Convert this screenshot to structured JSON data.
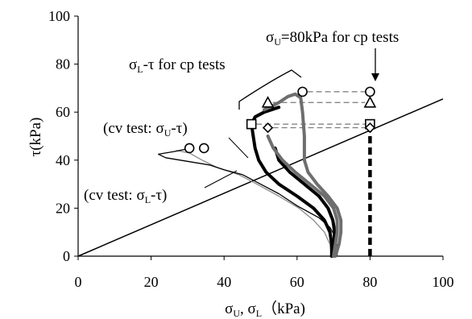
{
  "chart_data": {
    "type": "line",
    "xlabel": {
      "sym1": "σ",
      "sub1": "U",
      "sep": ", ",
      "sym2": "σ",
      "sub2": "L",
      "unit": "（kPa)"
    },
    "ylabel": {
      "sym": "τ",
      "unit": "(kPa)"
    },
    "xlim": [
      0,
      100
    ],
    "ylim": [
      0,
      100
    ],
    "xticks": [
      "0",
      "20",
      "40",
      "60",
      "80",
      "100"
    ],
    "yticks": [
      "0",
      "20",
      "40",
      "60",
      "80",
      "100"
    ],
    "grid": false,
    "legend": "none",
    "colors": {
      "dark": "#000000",
      "gray": "#6e6e6e",
      "light": "#8a8a8a"
    },
    "failure_line": {
      "x": [
        0,
        100
      ],
      "y": [
        0,
        65.5
      ]
    },
    "series": [
      {
        "style": "thin-light",
        "x": [
          69.5,
          69.0,
          67.5,
          64.5,
          60.5,
          55.0,
          49.0,
          44.0,
          38.0,
          34.0,
          30.5,
          27.0
        ],
        "y": [
          0,
          5,
          10,
          15,
          20,
          25,
          30,
          34,
          37,
          40,
          43,
          44
        ]
      },
      {
        "style": "thin-dark",
        "x": [
          71.0,
          71.0,
          70.5,
          69.0,
          66.0,
          60.0,
          55.0,
          50.0,
          45.0,
          40.0,
          36.0,
          32.0,
          28.0,
          24.0,
          22.0,
          26.0,
          31.0
        ],
        "y": [
          0,
          4,
          8,
          12,
          16,
          21,
          26,
          30,
          34,
          36,
          38,
          39,
          40,
          41,
          42.5,
          43.5,
          45
        ]
      },
      {
        "style": "thick-dark",
        "x": [
          69.5,
          69.5,
          69.0,
          67.5,
          64.5,
          60.0,
          55.0,
          51.5,
          49.5,
          48.5,
          48.0
        ],
        "y": [
          0,
          5,
          10,
          15,
          20,
          25,
          30,
          35,
          40,
          45,
          50
        ]
      },
      {
        "style": "thick-dark",
        "x": [
          70.0,
          70.0,
          70.3,
          69.8,
          68.5,
          66.0,
          62.0,
          58.0,
          55.0,
          54.0
        ],
        "y": [
          0,
          5,
          10,
          15,
          20,
          25,
          30,
          35,
          40,
          45
        ]
      },
      {
        "style": "thick-gray",
        "x": [
          70.0,
          70.5,
          71.0,
          71.0,
          70.0,
          67.5,
          63.5,
          59.5,
          56.0,
          53.5,
          52.0
        ],
        "y": [
          0,
          5,
          10,
          15,
          20,
          25,
          30,
          35,
          40,
          45,
          50
        ]
      },
      {
        "style": "thick-gray",
        "x": [
          70.5,
          71.5,
          72.0,
          72.0,
          71.0,
          68.5,
          65.5,
          63.0,
          62.0,
          62.0,
          61.5
        ],
        "y": [
          0,
          5,
          10,
          15,
          20,
          25,
          30,
          35,
          40,
          50,
          60
        ]
      },
      {
        "style": "thick-dark-branch",
        "x": [
          48.0,
          47.5,
          48.5,
          51.0,
          53.0,
          55.0
        ],
        "y": [
          50,
          55,
          58,
          60,
          61,
          62
        ]
      },
      {
        "style": "thick-gray-branch",
        "x": [
          61.5,
          61.0,
          59.5,
          57.5,
          55.0,
          52.5,
          51.0
        ],
        "y": [
          60,
          66,
          67.5,
          66.5,
          64,
          62,
          61
        ]
      }
    ],
    "start_markers": [
      {
        "shape": "circle",
        "x": 30.5,
        "y": 45
      },
      {
        "shape": "circle",
        "x": 34.5,
        "y": 45
      },
      {
        "shape": "square",
        "x": 47.5,
        "y": 55
      },
      {
        "shape": "diamond",
        "x": 52,
        "y": 53.5
      },
      {
        "shape": "triangle",
        "x": 52,
        "y": 64
      },
      {
        "shape": "circle",
        "x": 61.5,
        "y": 68.5
      }
    ],
    "cp_markers": [
      {
        "shape": "circle",
        "x": 80,
        "y": 68.5
      },
      {
        "shape": "triangle",
        "x": 80,
        "y": 64
      },
      {
        "shape": "square",
        "x": 80,
        "y": 55
      },
      {
        "shape": "diamond",
        "x": 80,
        "y": 53.5
      }
    ],
    "dashed_levels": [
      68.5,
      64,
      55,
      53.5
    ],
    "cp_line": {
      "x": 80,
      "y_from": 0,
      "y_to": 53.5
    },
    "annotations": {
      "top": {
        "sym": "σ",
        "sub": "U",
        "text": "=80kPa for cp tests"
      },
      "cp": {
        "sym": "σ",
        "sub": "L",
        "text": "-τ for cp tests"
      },
      "cv1": {
        "pre": "(cv test: ",
        "sym": "σ",
        "sub": "U",
        "text": "-τ)"
      },
      "cv2": {
        "pre": "(cv test: ",
        "sym": "σ",
        "sub": "L",
        "text": "-τ)"
      }
    }
  }
}
